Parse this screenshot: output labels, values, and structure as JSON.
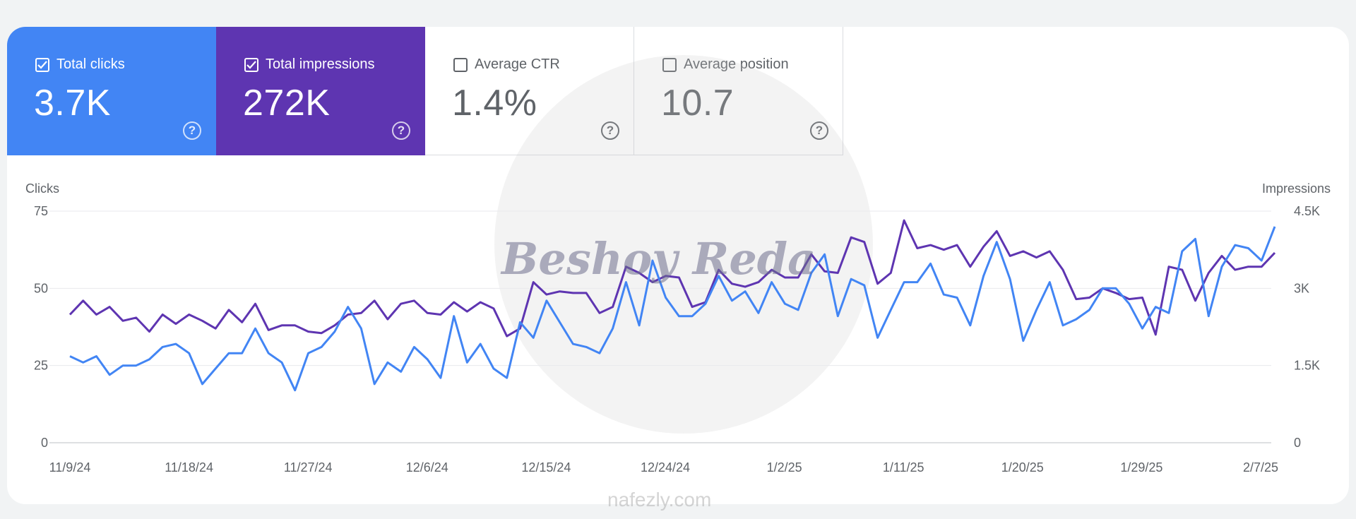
{
  "metrics": [
    {
      "label": "Total clicks",
      "value": "3.7K",
      "checked": true
    },
    {
      "label": "Total impressions",
      "value": "272K",
      "checked": true
    },
    {
      "label": "Average CTR",
      "value": "1.4%",
      "checked": false
    },
    {
      "label": "Average position",
      "value": "10.7",
      "checked": false
    }
  ],
  "colors": {
    "clicks": "#4285f4",
    "impressions": "#5e35b1"
  },
  "watermark": {
    "name": "Beshoy Reda",
    "site": "nafezly.com"
  },
  "chart_data": {
    "type": "line",
    "left_axis": {
      "label": "Clicks",
      "ticks": [
        "0",
        "25",
        "50",
        "75"
      ],
      "range": [
        0,
        75
      ]
    },
    "right_axis": {
      "label": "Impressions",
      "ticks": [
        "0",
        "1.5K",
        "3K",
        "4.5K"
      ],
      "range": [
        0,
        4500
      ]
    },
    "x_tick_labels": [
      "11/9/24",
      "11/18/24",
      "11/27/24",
      "12/6/24",
      "12/15/24",
      "12/24/24",
      "1/2/25",
      "1/11/25",
      "1/20/25",
      "1/29/25",
      "2/7/25"
    ],
    "grid": true,
    "series": [
      {
        "name": "Clicks",
        "axis": "left",
        "values": [
          28,
          26,
          28,
          22,
          25,
          25,
          27,
          31,
          32,
          29,
          19,
          24,
          29,
          29,
          37,
          29,
          26,
          17,
          29,
          31,
          36,
          44,
          37,
          19,
          26,
          23,
          31,
          27,
          21,
          41,
          26,
          32,
          24,
          21,
          39,
          34,
          46,
          39,
          32,
          31,
          29,
          37,
          52,
          38,
          59,
          47,
          41,
          41,
          45,
          54,
          46,
          49,
          42,
          52,
          45,
          43,
          55,
          61,
          41,
          53,
          51,
          34,
          43,
          52,
          52,
          58,
          48,
          47,
          38,
          54,
          65,
          53,
          33,
          43,
          52,
          38,
          40,
          43,
          50,
          50,
          45,
          37,
          44,
          42,
          62,
          66,
          41,
          57,
          64,
          63,
          59,
          70
        ]
      },
      {
        "name": "Impressions",
        "axis": "right",
        "values": [
          2490,
          2760,
          2490,
          2640,
          2370,
          2430,
          2160,
          2490,
          2310,
          2490,
          2370,
          2220,
          2580,
          2340,
          2700,
          2190,
          2280,
          2280,
          2160,
          2130,
          2280,
          2490,
          2520,
          2760,
          2400,
          2700,
          2760,
          2520,
          2490,
          2730,
          2550,
          2730,
          2610,
          2070,
          2220,
          3120,
          2880,
          2940,
          2910,
          2910,
          2520,
          2640,
          3420,
          3300,
          3120,
          3240,
          3210,
          2640,
          2730,
          3360,
          3090,
          3030,
          3120,
          3360,
          3210,
          3210,
          3660,
          3330,
          3300,
          3990,
          3900,
          3090,
          3300,
          4320,
          3780,
          3840,
          3750,
          3840,
          3420,
          3810,
          4110,
          3630,
          3720,
          3600,
          3720,
          3360,
          2790,
          2820,
          3000,
          2910,
          2790,
          2820,
          2100,
          3420,
          3360,
          2760,
          3300,
          3630,
          3360,
          3420,
          3420,
          3690
        ]
      }
    ]
  }
}
